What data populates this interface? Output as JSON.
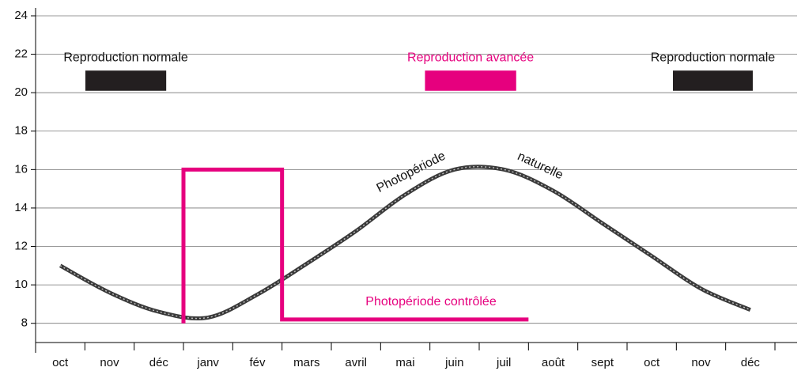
{
  "chart_data": {
    "type": "line",
    "categories": [
      "oct",
      "nov",
      "déc",
      "janv",
      "fév",
      "mars",
      "avril",
      "mai",
      "juin",
      "juil",
      "août",
      "sept",
      "oct",
      "nov",
      "déc"
    ],
    "xlim": [
      0,
      15
    ],
    "ylim": [
      7,
      24
    ],
    "yticks": [
      8,
      10,
      12,
      14,
      16,
      18,
      20,
      22,
      24
    ],
    "grid": true,
    "series": [
      {
        "color": "#3a3a3a",
        "values": [
          11.0,
          9.6,
          8.6,
          8.3,
          9.5,
          11.1,
          12.8,
          14.7,
          16.0,
          16.0,
          14.9,
          13.2,
          11.5,
          9.8,
          8.7
        ]
      }
    ],
    "controlled": {
      "color": "#e6007e",
      "x": [
        3,
        3,
        5,
        5,
        10
      ],
      "values": [
        8,
        16,
        16,
        8.2,
        8.2
      ]
    },
    "periods": [
      {
        "label": "Reproduction normale",
        "color": "#231f20",
        "x": [
          1.01,
          2.65
        ],
        "y": [
          20.1,
          21.15
        ]
      },
      {
        "label": "Reproduction avancée",
        "color": "#e6007e",
        "x": [
          7.9,
          9.75
        ],
        "y": [
          20.1,
          21.15
        ]
      },
      {
        "label": "Reproduction normale",
        "color": "#231f20",
        "x": [
          12.93,
          14.55
        ],
        "y": [
          20.1,
          21.15
        ]
      }
    ],
    "annotations": [
      {
        "text": "Photopériode",
        "color": "#111"
      },
      {
        "text": "naturelle",
        "color": "#111"
      },
      {
        "text": "Photopériode contrôlée",
        "color": "#e6007e"
      }
    ]
  }
}
